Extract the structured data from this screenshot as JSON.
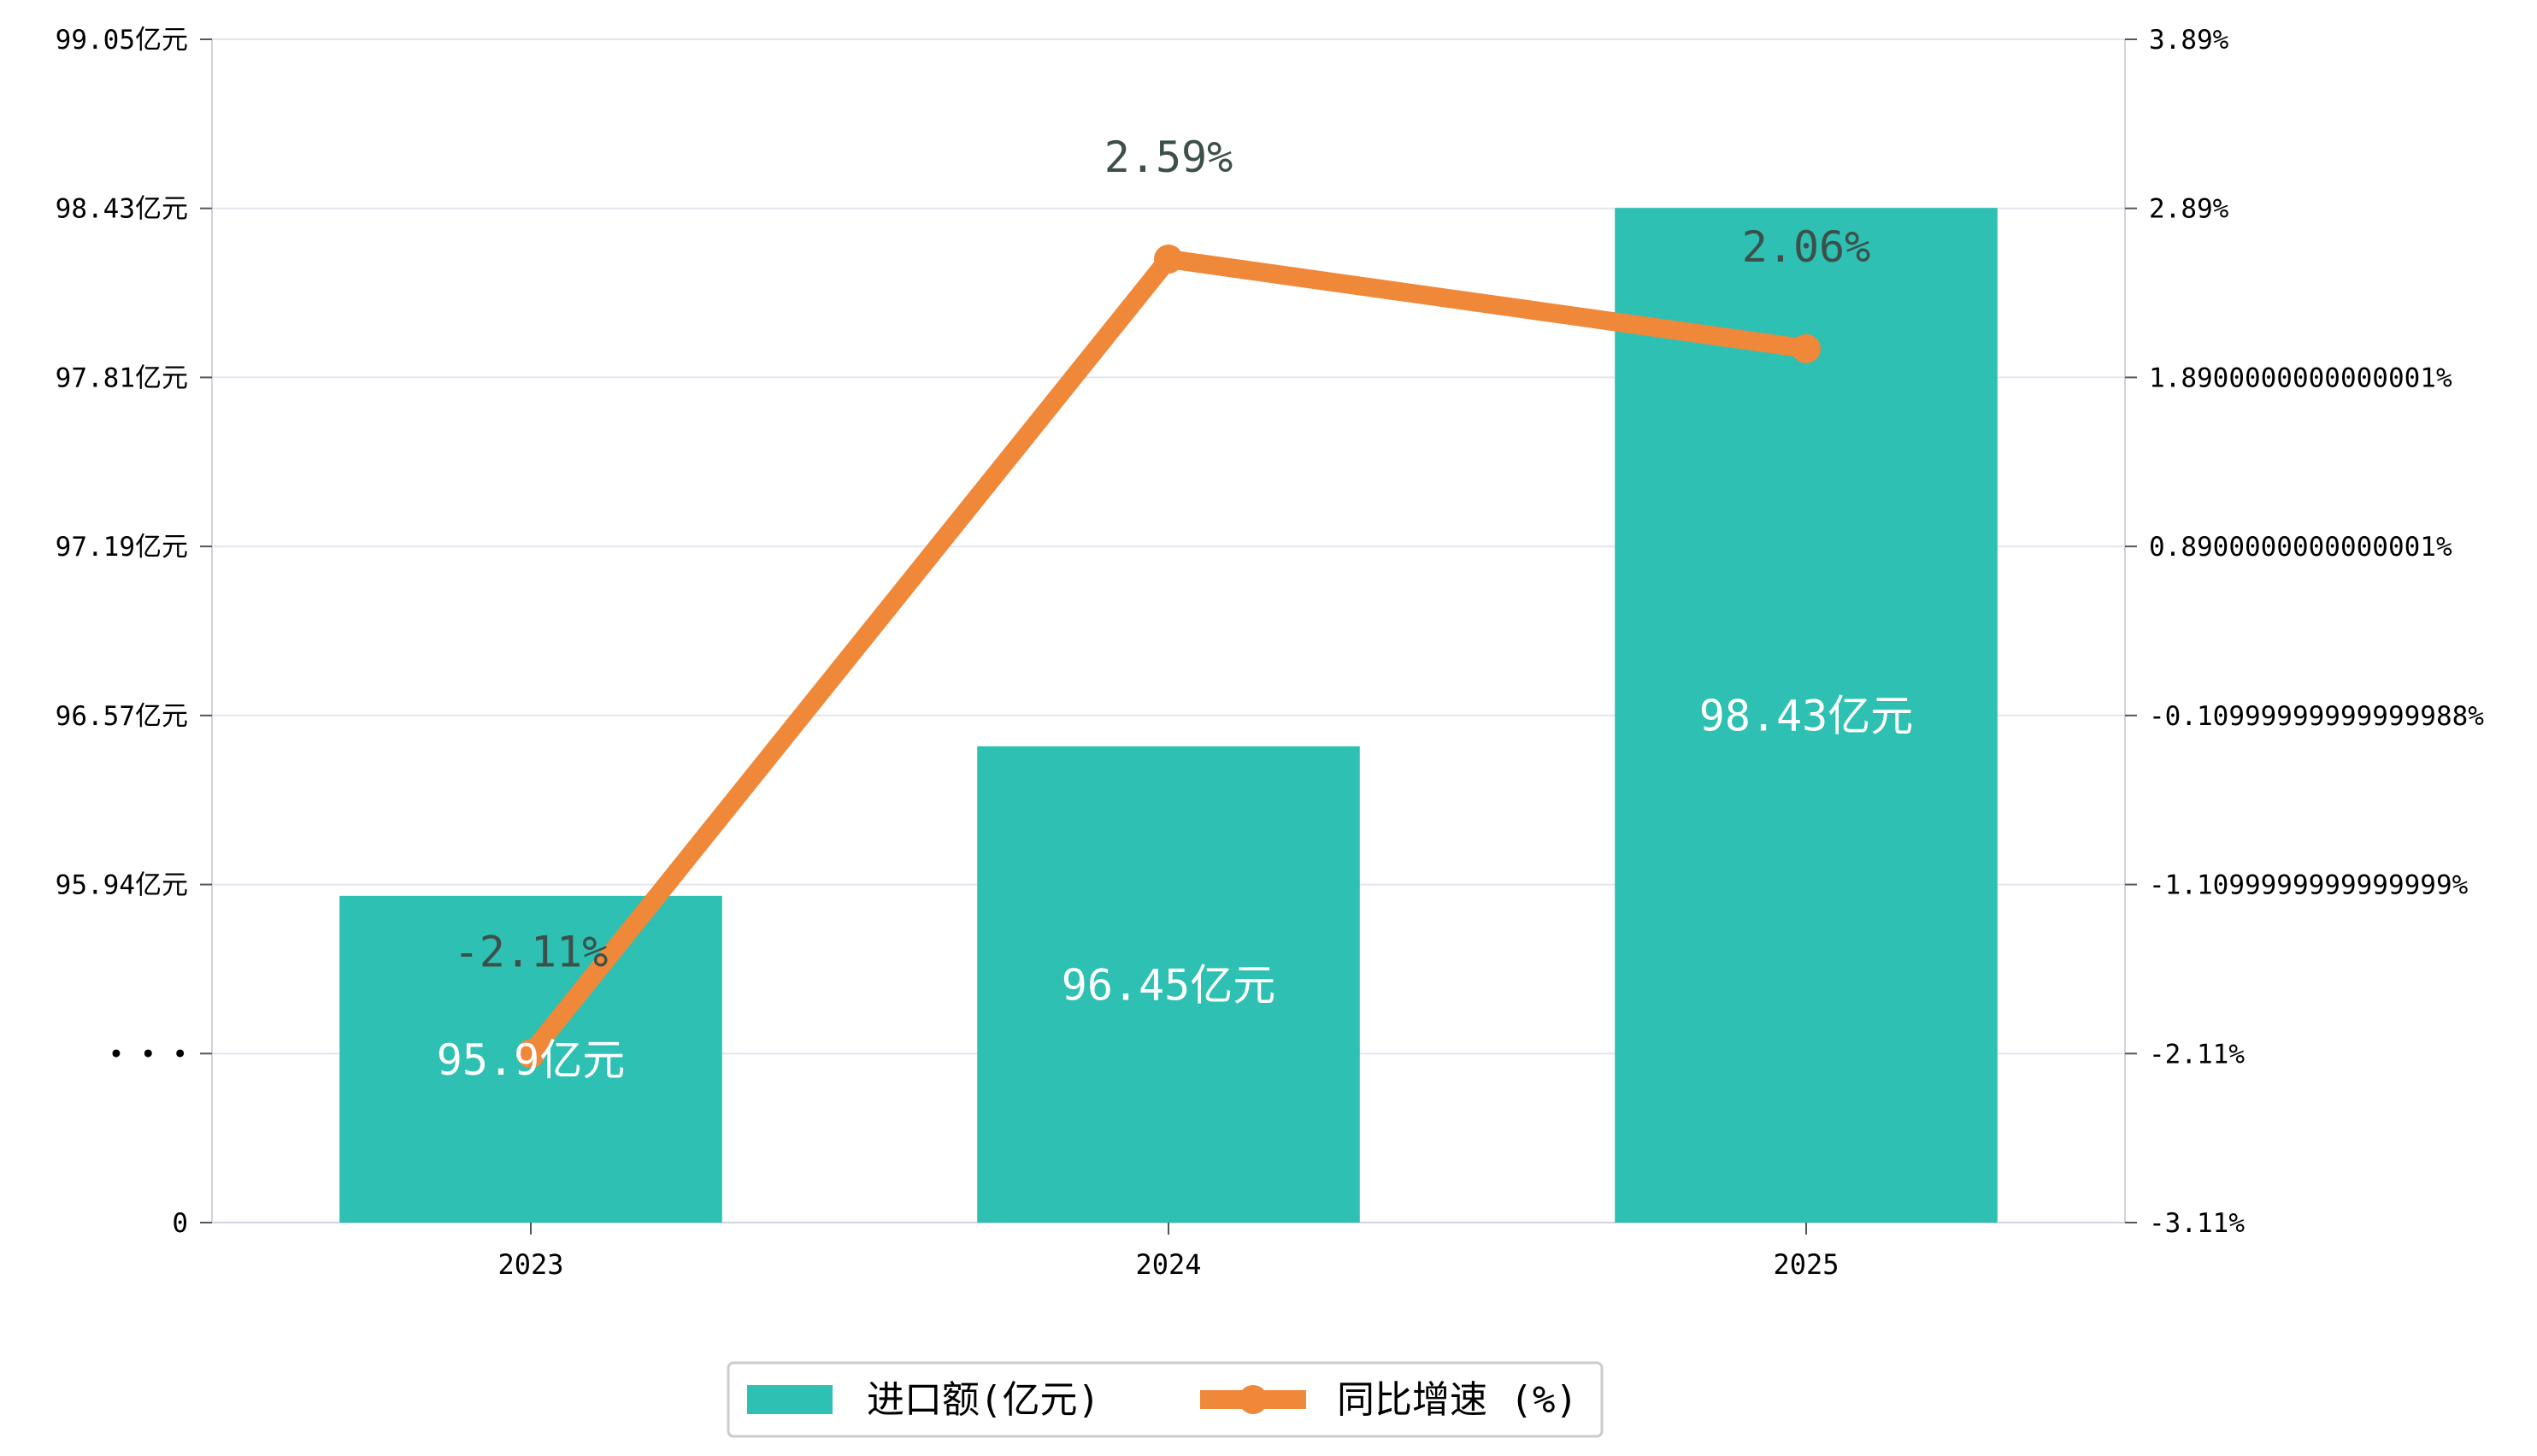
{
  "chart_data": {
    "type": "bar+line",
    "categories": [
      "2023",
      "2024",
      "2025"
    ],
    "series": [
      {
        "name": "进口额(亿元)",
        "type": "bar",
        "axis": "left",
        "values": [
          95.9,
          96.45,
          98.43
        ],
        "labels": [
          "95.9亿元",
          "96.45亿元",
          "98.43亿元"
        ]
      },
      {
        "name": "同比增速 (%)",
        "type": "line",
        "axis": "right",
        "values": [
          -2.11,
          2.59,
          2.06
        ],
        "labels": [
          "-2.11%",
          "2.59%",
          "2.06%"
        ]
      }
    ],
    "left_axis": {
      "ticks": [
        0,
        95.32,
        95.94,
        96.57,
        97.19,
        97.81,
        98.43,
        99.05
      ],
      "tick_labels": [
        "0",
        "• • •",
        "95.94亿元",
        "96.57亿元",
        "97.19亿元",
        "97.81亿元",
        "98.43亿元",
        "99.05亿元"
      ],
      "broken_axis_lower": 95.32
    },
    "right_axis": {
      "ylim": [
        -3.11,
        3.89
      ],
      "ticks": [
        -3.11,
        -2.11,
        -1.11,
        -0.11,
        0.89,
        1.89,
        2.89,
        3.89
      ],
      "tick_labels": [
        "-3.11%",
        "-2.11%",
        "-1.1099999999999999%",
        "-0.10999999999999988%",
        "0.8900000000000001%",
        "1.8900000000000001%",
        "2.89%",
        "3.89%"
      ]
    },
    "grid": true,
    "legend_position": "bottom-center",
    "colors": {
      "bar": "#2ec0b3",
      "line": "#f0883a",
      "grid": "#e3e5ef",
      "axis": "#d0d3de",
      "pct_label": "#3d4f4a"
    }
  }
}
